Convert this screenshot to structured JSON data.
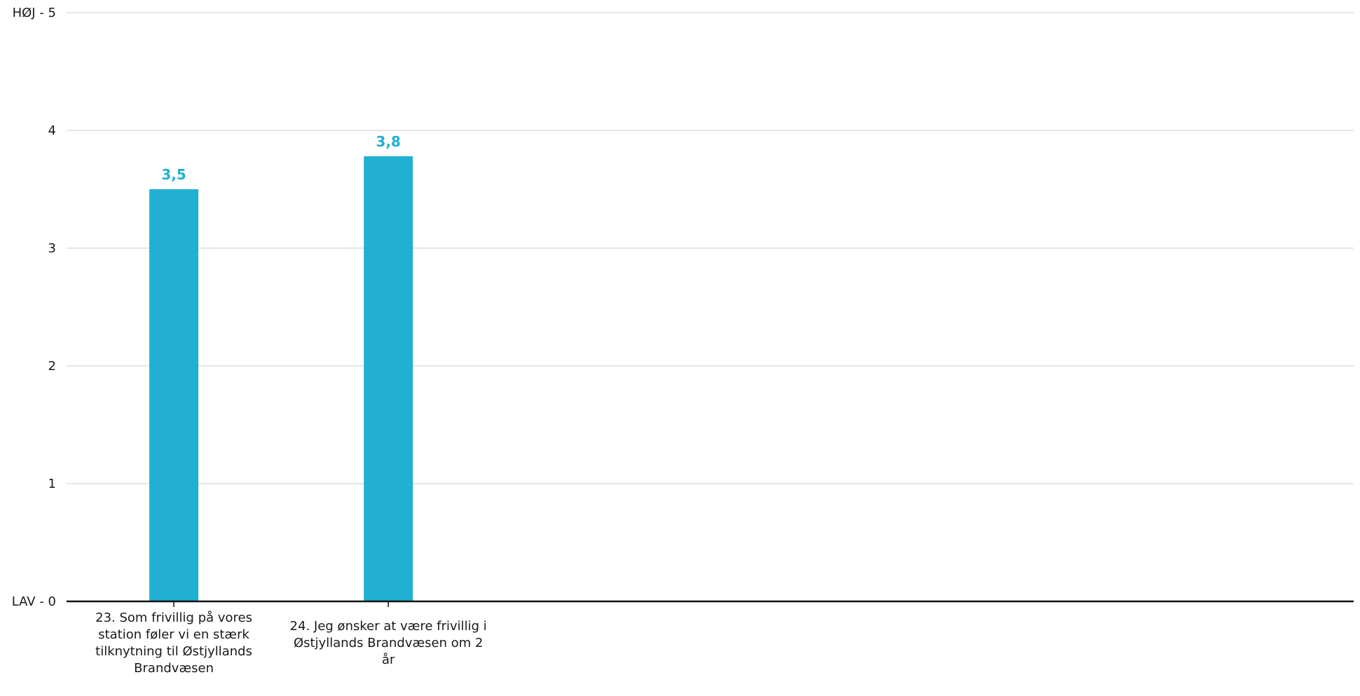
{
  "chart_data": {
    "type": "bar",
    "categories": [
      "23. Som frivillig på vores station føler vi en stærk tilknytning til Østjyllands Brandvæsen",
      "24. Jeg ønsker at være frivillig i Østjyllands Brandvæsen om 2 år"
    ],
    "category_lines": [
      [
        "23. Som frivillig på vores",
        "station føler vi en stærk",
        "tilknytning til Østjyllands",
        "Brandvæsen"
      ],
      [
        "24. Jeg ønsker at være frivillig i",
        "Østjyllands Brandvæsen om 2",
        "år"
      ]
    ],
    "values": [
      3.5,
      3.78
    ],
    "data_labels": [
      "3,5",
      "3,8"
    ],
    "ylim": [
      0,
      5
    ],
    "yticks": [
      {
        "value": 0,
        "label": "LAV - 0"
      },
      {
        "value": 1,
        "label": "1"
      },
      {
        "value": 2,
        "label": "2"
      },
      {
        "value": 3,
        "label": "3"
      },
      {
        "value": 4,
        "label": "4"
      },
      {
        "value": 5,
        "label": "HØJ - 5"
      }
    ],
    "category_slots": 6,
    "grid": true,
    "title": "",
    "xlabel": "",
    "ylabel": "",
    "bar_color": "#21b0d4",
    "label_color": "#21b0d4",
    "grid_color": "#cccccc",
    "axis_color": "#111111"
  }
}
